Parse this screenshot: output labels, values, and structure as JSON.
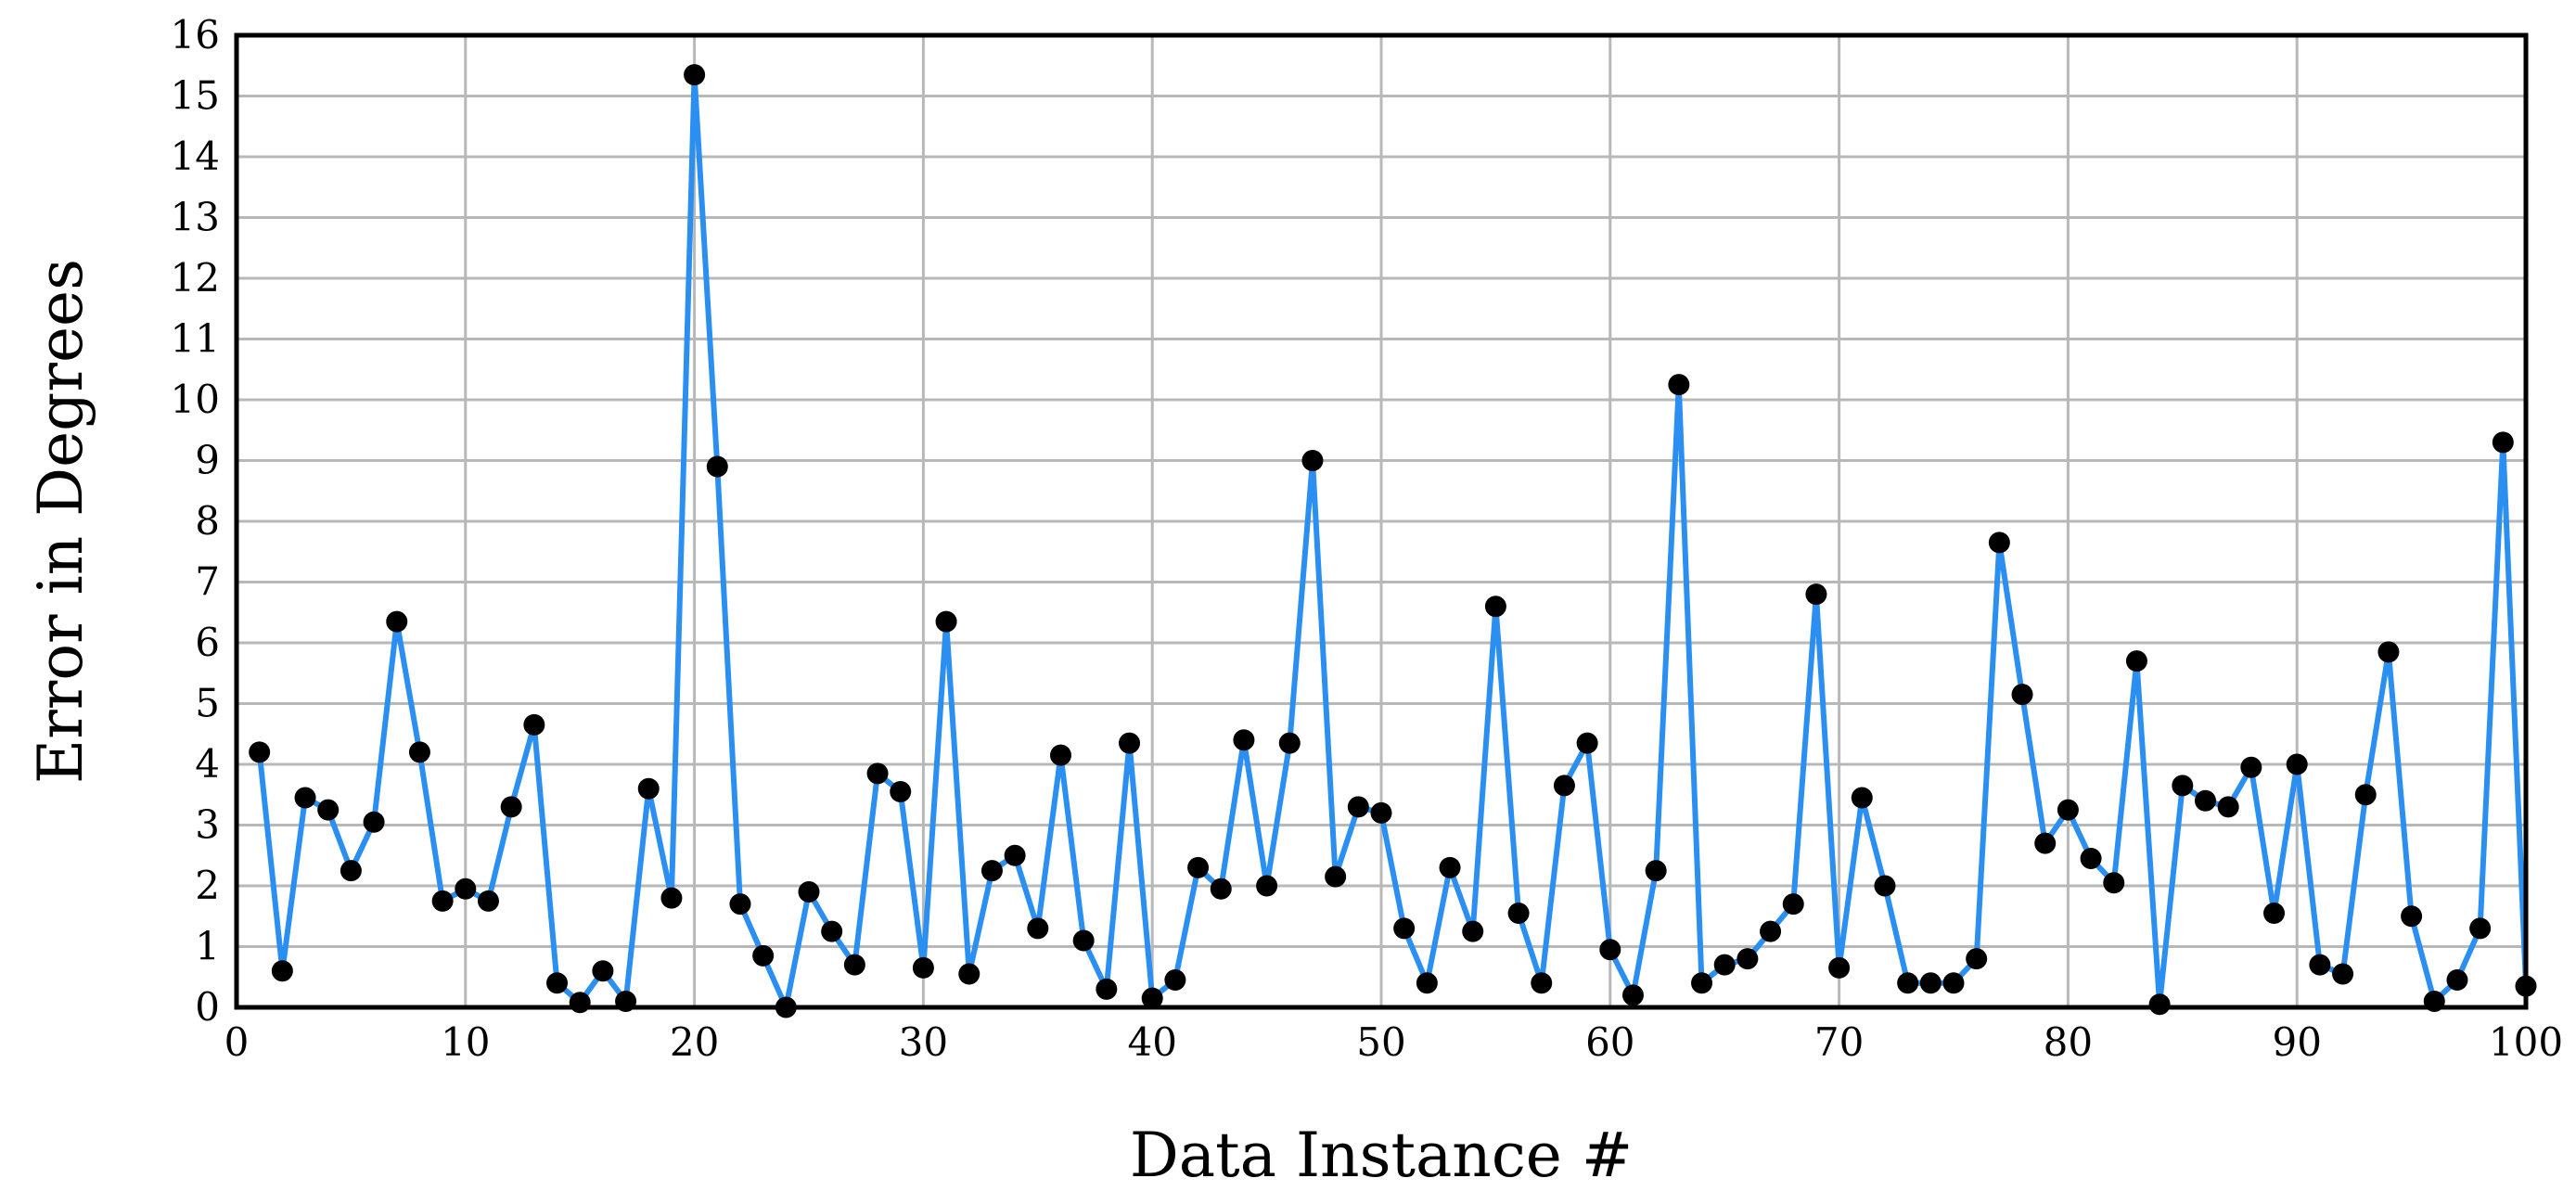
{
  "chart_data": {
    "type": "line",
    "xlabel": "Data Instance #",
    "ylabel": "Error in Degrees",
    "xlim": [
      0,
      100
    ],
    "ylim": [
      0,
      16
    ],
    "x_ticks": [
      0,
      10,
      20,
      30,
      40,
      50,
      60,
      70,
      80,
      90,
      100
    ],
    "y_ticks": [
      0,
      1,
      2,
      3,
      4,
      5,
      6,
      7,
      8,
      9,
      10,
      11,
      12,
      13,
      14,
      15,
      16
    ],
    "grid": true,
    "line_color": "#2a8ff0",
    "marker_color": "#000000",
    "series": [
      {
        "x": [
          1,
          2,
          3,
          4,
          5,
          6,
          7,
          8,
          9,
          10,
          11,
          12,
          13,
          14,
          15,
          16,
          17,
          18,
          19,
          20,
          21,
          22,
          23,
          24,
          25,
          26,
          27,
          28,
          29,
          30,
          31,
          32,
          33,
          34,
          35,
          36,
          37,
          38,
          39,
          40,
          41,
          42,
          43,
          44,
          45,
          46,
          47,
          48,
          49,
          50,
          51,
          52,
          53,
          54,
          55,
          56,
          57,
          58,
          59,
          60,
          61,
          62,
          63,
          64,
          65,
          66,
          67,
          68,
          69,
          70,
          71,
          72,
          73,
          74,
          75,
          76,
          77,
          78,
          79,
          80,
          81,
          82,
          83,
          84,
          85,
          86,
          87,
          88,
          89,
          90,
          91,
          92,
          93,
          94,
          95,
          96,
          97,
          98,
          99,
          100
        ],
        "values": [
          4.2,
          0.6,
          3.45,
          3.25,
          2.25,
          3.05,
          6.35,
          4.2,
          1.75,
          1.95,
          1.75,
          3.3,
          4.65,
          0.4,
          0.08,
          0.6,
          0.1,
          3.6,
          1.8,
          15.35,
          8.9,
          1.7,
          0.85,
          0.0,
          1.9,
          1.25,
          0.7,
          3.85,
          3.55,
          0.65,
          6.35,
          0.55,
          2.25,
          2.5,
          1.3,
          4.15,
          1.1,
          0.3,
          4.35,
          0.15,
          0.45,
          2.3,
          1.95,
          4.4,
          2.0,
          4.35,
          9.0,
          2.15,
          3.3,
          3.2,
          1.3,
          0.4,
          2.3,
          1.25,
          6.6,
          1.55,
          0.4,
          3.65,
          4.35,
          0.95,
          0.2,
          2.25,
          10.25,
          0.4,
          0.7,
          0.8,
          1.25,
          1.7,
          6.8,
          0.65,
          3.45,
          2.0,
          0.4,
          0.4,
          0.4,
          0.8,
          7.65,
          5.15,
          2.7,
          3.25,
          2.45,
          2.05,
          5.7,
          0.05,
          3.65,
          3.4,
          3.3,
          3.95,
          1.55,
          4.0,
          0.7,
          0.55,
          3.5,
          5.85,
          1.5,
          0.1,
          0.45,
          1.3,
          9.3,
          0.35
        ]
      }
    ]
  }
}
